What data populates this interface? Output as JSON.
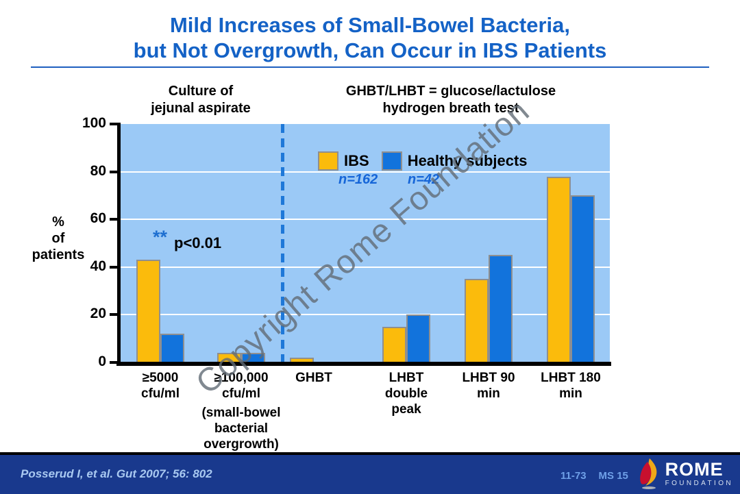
{
  "slide": {
    "title_line1": "Mild Increases of Small-Bowel Bacteria,",
    "title_line2": "but Not Overgrowth, Can Occur in IBS Patients"
  },
  "colors": {
    "title": "#1462C6",
    "plot_background": "#9BC9F6",
    "divider_blue": "#1E78D8",
    "footer_background": "#19398D",
    "footer_text": "#A9C9F1",
    "watermark_gray": "#626E7A"
  },
  "chart_data": {
    "type": "bar",
    "section_labels": {
      "left": [
        "Culture of",
        "jejunal aspirate"
      ],
      "right": [
        "GHBT/LHBT = glucose/lactulose",
        "hydrogen breath test"
      ]
    },
    "ylabel_lines": [
      "%",
      "of",
      "patients"
    ],
    "ylim": [
      0,
      100
    ],
    "yticks": [
      0,
      20,
      40,
      60,
      80,
      100
    ],
    "gridlines": [
      20,
      40,
      60,
      80
    ],
    "grid": "on",
    "legend_position": "top-center-inside",
    "categories": [
      {
        "label_lines": [
          "≥5000",
          "cfu/ml"
        ]
      },
      {
        "label_lines": [
          "≥100,000",
          "cfu/ml"
        ],
        "note_lines": [
          "(small-bowel",
          "bacterial",
          "overgrowth)"
        ]
      },
      {
        "label_lines": [
          "GHBT"
        ]
      },
      {
        "label_lines": [
          "LHBT",
          "double",
          "peak"
        ]
      },
      {
        "label_lines": [
          "LHBT 90",
          "min"
        ]
      },
      {
        "label_lines": [
          "LHBT 180",
          "min"
        ]
      }
    ],
    "series": [
      {
        "name": "IBS",
        "n_label": "n=162",
        "color": "#FBBB0C",
        "values": [
          43,
          4,
          2,
          15,
          35,
          78
        ]
      },
      {
        "name": "Healthy subjects",
        "n_label": "n=42",
        "color": "#1273DC",
        "values": [
          12,
          4,
          0,
          20,
          45,
          70
        ]
      }
    ],
    "annotation": {
      "stars": "**",
      "p_value": "p<0.01"
    },
    "divider_after_category_index": 1
  },
  "watermark": {
    "text": "Copyright Rome Foundation"
  },
  "footer": {
    "citation": "Posserud I, et al. Gut  2007; 56: 802",
    "slide_code": "11-73",
    "ms_code": "MS 15",
    "logo_title": "ROME",
    "logo_subtitle": "FOUNDATION"
  }
}
